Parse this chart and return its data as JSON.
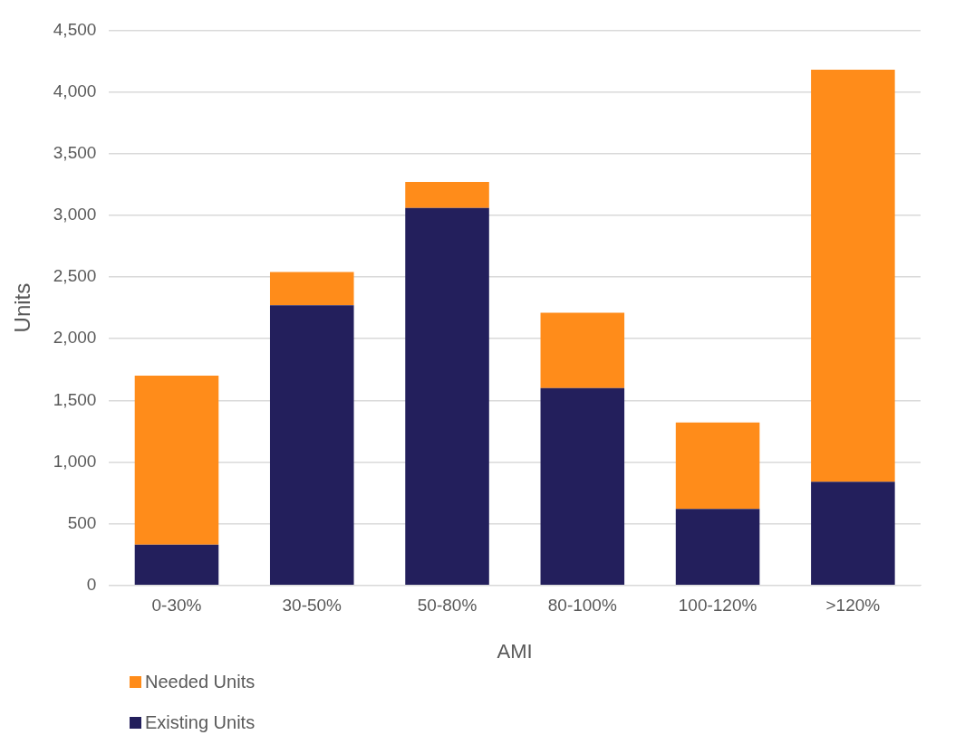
{
  "chart_data": {
    "type": "bar",
    "stacked": true,
    "xlabel": "AMI",
    "ylabel": "Units",
    "categories": [
      "0-30%",
      "30-50%",
      "50-80%",
      "80-100%",
      "100-120%",
      ">120%"
    ],
    "series": [
      {
        "name": "Existing Units",
        "color": "#231f5c",
        "values": [
          330,
          2270,
          3060,
          1600,
          620,
          840
        ]
      },
      {
        "name": "Needed Units",
        "color": "#ff8c1a",
        "values": [
          1370,
          270,
          210,
          610,
          700,
          3340
        ]
      }
    ],
    "ylim": [
      0,
      4500
    ],
    "yticks": [
      0,
      500,
      {
        "value": 1000,
        "label": "1,000"
      },
      {
        "value": 1500,
        "label": "1,500"
      },
      {
        "value": 2000,
        "label": "2,000"
      },
      {
        "value": 2500,
        "label": "2,500"
      },
      {
        "value": 3000,
        "label": "3,000"
      },
      {
        "value": 3500,
        "label": "3,500"
      },
      {
        "value": 4000,
        "label": "4,000"
      },
      {
        "value": 4500,
        "label": "4,500"
      }
    ],
    "grid": "y",
    "legend": "bottom left"
  }
}
